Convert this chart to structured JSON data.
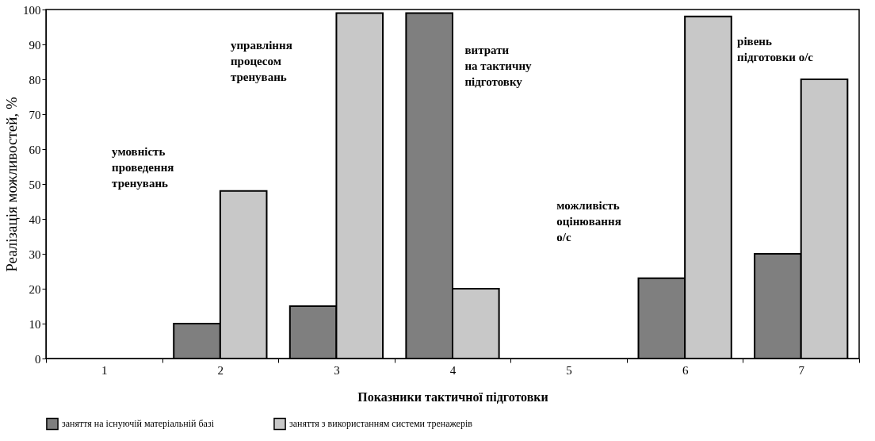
{
  "chart_data": {
    "type": "bar",
    "xlabel": "Показники тактичної підготовки",
    "ylabel": "Реалізація можливостей, %",
    "categories": [
      "1",
      "2",
      "3",
      "4",
      "5",
      "6",
      "7"
    ],
    "series": [
      {
        "name": "заняття  на існуючій  матеріальній   базі",
        "color": "#7f7f7f",
        "values": [
          null,
          10,
          15,
          99,
          null,
          23,
          30
        ]
      },
      {
        "name": "заняття  з використанням  системи  тренажерів",
        "color": "#c8c8c8",
        "values": [
          null,
          48,
          99,
          20,
          null,
          98,
          80
        ]
      }
    ],
    "ylim": [
      0,
      100
    ],
    "yticks": [
      0,
      10,
      20,
      30,
      40,
      50,
      60,
      70,
      80,
      90,
      100
    ],
    "grid": false,
    "legend": "bottom",
    "annotations": [
      "умовність\nпроведення\nтренувань",
      "управління\nпроцесом\nтренувань",
      "витрати\nна тактичну\nпідготовку",
      "можливість\nоцінювання\nо/с",
      "рівень\nпідготовки о/с"
    ]
  }
}
